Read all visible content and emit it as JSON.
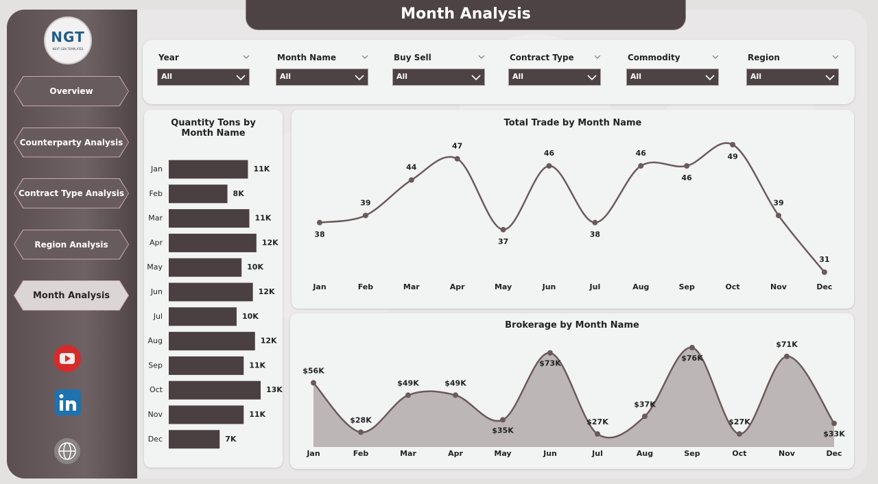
{
  "logo": {
    "title": "NGT",
    "subtitle": "NEXT GEN TEMPLATES"
  },
  "header": {
    "title": "Month Analysis"
  },
  "nav": [
    "Overview",
    "Counterparty Analysis",
    "Contract Type Analysis",
    "Region Analysis",
    "Month Analysis"
  ],
  "active_nav": 4,
  "filters": [
    {
      "label": "Year",
      "value": "All"
    },
    {
      "label": "Month Name",
      "value": "All"
    },
    {
      "label": "Buy Sell",
      "value": "All"
    },
    {
      "label": "Contract Type",
      "value": "All"
    },
    {
      "label": "Commodity",
      "value": "All"
    },
    {
      "label": "Region",
      "value": "All"
    }
  ],
  "chart_data": [
    {
      "type": "bar",
      "title": "Quantity Tons by Month Name",
      "categories": [
        "Jan",
        "Feb",
        "Mar",
        "Apr",
        "May",
        "Jun",
        "Jul",
        "Aug",
        "Sep",
        "Oct",
        "Nov",
        "Dec"
      ],
      "values": [
        11200,
        8300,
        11400,
        12400,
        10300,
        11900,
        9600,
        12200,
        10600,
        13000,
        10600,
        7200
      ],
      "value_labels": [
        "11K",
        "8K",
        "11K",
        "12K",
        "10K",
        "12K",
        "10K",
        "12K",
        "11K",
        "13K",
        "11K",
        "7K"
      ],
      "color": "#4a3f41"
    },
    {
      "type": "line",
      "title": "Total Trade by Month Name",
      "categories": [
        "Jan",
        "Feb",
        "Mar",
        "Apr",
        "May",
        "Jun",
        "Jul",
        "Aug",
        "Sep",
        "Oct",
        "Nov",
        "Dec"
      ],
      "values": [
        38,
        39,
        44,
        47,
        37,
        46,
        38,
        46,
        46,
        49,
        39,
        31
      ],
      "color": "#6b5a5c"
    },
    {
      "type": "area",
      "title": "Brokerage by Month Name",
      "categories": [
        "Jan",
        "Feb",
        "Mar",
        "Apr",
        "May",
        "Jun",
        "Jul",
        "Aug",
        "Sep",
        "Oct",
        "Nov",
        "Dec"
      ],
      "values": [
        56000,
        28000,
        49000,
        49000,
        35000,
        73000,
        27000,
        37000,
        76000,
        27000,
        71000,
        33000
      ],
      "value_labels": [
        "$56K",
        "$28K",
        "$49K",
        "$49K",
        "$35K",
        "$73K",
        "$27K",
        "$37K",
        "$76K",
        "$27K",
        "$71K",
        "$33K"
      ],
      "color": "#6b5a5c",
      "fill": "#bcb6b7"
    }
  ]
}
